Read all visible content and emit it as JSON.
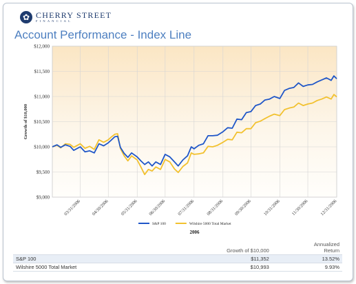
{
  "header": {
    "brand_name": "CHERRY STREET",
    "brand_sub": "FINANCIAL",
    "logo_icon": "flower-icon",
    "page_title": "Account Performance - Index Line"
  },
  "chart_data": {
    "type": "line",
    "title": "",
    "xlabel": "2006",
    "ylabel": "Growth of $10,000",
    "ylim": [
      9000,
      12000
    ],
    "y_ticks": [
      9000,
      9500,
      10000,
      10500,
      11000,
      11500,
      12000
    ],
    "y_tick_labels": [
      "$9,000",
      "$9,500",
      "$10,000",
      "$10,500",
      "$11,000",
      "$11,500",
      "$12,000"
    ],
    "x_tick_labels": [
      "03/31/2006",
      "04/30/2006",
      "05/31/2006",
      "06/30/2006",
      "07/31/2006",
      "08/31/2006",
      "09/30/2006",
      "10/31/2006",
      "11/30/2006",
      "12/31/2006"
    ],
    "x_start": "03/01/2006",
    "x_end": "12/31/2006",
    "grid": true,
    "legend_position": "bottom",
    "background": "gradient cream to amber at top",
    "series": [
      {
        "name": "S&P 100",
        "color": "#1f56c8",
        "points": [
          [
            "03/01/2006",
            10000
          ],
          [
            "03/06/2006",
            10040
          ],
          [
            "03/10/2006",
            9990
          ],
          [
            "03/15/2006",
            10040
          ],
          [
            "03/20/2006",
            10010
          ],
          [
            "03/24/2006",
            9930
          ],
          [
            "03/31/2006",
            10000
          ],
          [
            "04/05/2006",
            9900
          ],
          [
            "04/10/2006",
            9920
          ],
          [
            "04/15/2006",
            9880
          ],
          [
            "04/20/2006",
            10060
          ],
          [
            "04/25/2006",
            10020
          ],
          [
            "04/30/2006",
            10080
          ],
          [
            "05/03/2006",
            10130
          ],
          [
            "05/07/2006",
            10200
          ],
          [
            "05/10/2006",
            10210
          ],
          [
            "05/13/2006",
            9990
          ],
          [
            "05/17/2006",
            9870
          ],
          [
            "05/21/2006",
            9790
          ],
          [
            "05/25/2006",
            9880
          ],
          [
            "05/31/2006",
            9800
          ],
          [
            "06/04/2006",
            9720
          ],
          [
            "06/08/2006",
            9650
          ],
          [
            "06/12/2006",
            9700
          ],
          [
            "06/16/2006",
            9620
          ],
          [
            "06/20/2006",
            9700
          ],
          [
            "06/25/2006",
            9650
          ],
          [
            "06/30/2006",
            9850
          ],
          [
            "07/05/2006",
            9800
          ],
          [
            "07/10/2006",
            9700
          ],
          [
            "07/14/2006",
            9620
          ],
          [
            "07/19/2006",
            9740
          ],
          [
            "07/24/2006",
            9820
          ],
          [
            "07/28/2006",
            10000
          ],
          [
            "07/31/2006",
            9960
          ],
          [
            "08/05/2006",
            10030
          ],
          [
            "08/10/2006",
            10060
          ],
          [
            "08/15/2006",
            10220
          ],
          [
            "08/20/2006",
            10220
          ],
          [
            "08/25/2006",
            10230
          ],
          [
            "08/31/2006",
            10300
          ],
          [
            "09/05/2006",
            10380
          ],
          [
            "09/10/2006",
            10370
          ],
          [
            "09/15/2006",
            10550
          ],
          [
            "09/20/2006",
            10540
          ],
          [
            "09/25/2006",
            10680
          ],
          [
            "09/30/2006",
            10700
          ],
          [
            "10/05/2006",
            10820
          ],
          [
            "10/10/2006",
            10850
          ],
          [
            "10/15/2006",
            10930
          ],
          [
            "10/20/2006",
            10950
          ],
          [
            "10/25/2006",
            11000
          ],
          [
            "10/31/2006",
            10960
          ],
          [
            "11/05/2006",
            11120
          ],
          [
            "11/10/2006",
            11160
          ],
          [
            "11/15/2006",
            11180
          ],
          [
            "11/20/2006",
            11270
          ],
          [
            "11/25/2006",
            11200
          ],
          [
            "11/30/2006",
            11230
          ],
          [
            "12/05/2006",
            11240
          ],
          [
            "12/10/2006",
            11290
          ],
          [
            "12/15/2006",
            11330
          ],
          [
            "12/20/2006",
            11370
          ],
          [
            "12/25/2006",
            11320
          ],
          [
            "12/28/2006",
            11410
          ],
          [
            "12/31/2006",
            11352
          ]
        ]
      },
      {
        "name": "Wilshire 5000 Total Market",
        "color": "#f2c12e",
        "points": [
          [
            "03/01/2006",
            10000
          ],
          [
            "03/06/2006",
            10030
          ],
          [
            "03/10/2006",
            9980
          ],
          [
            "03/15/2006",
            10060
          ],
          [
            "03/20/2006",
            10050
          ],
          [
            "03/24/2006",
            9990
          ],
          [
            "03/31/2006",
            10060
          ],
          [
            "04/05/2006",
            9970
          ],
          [
            "04/10/2006",
            10010
          ],
          [
            "04/15/2006",
            9950
          ],
          [
            "04/20/2006",
            10140
          ],
          [
            "04/25/2006",
            10090
          ],
          [
            "04/30/2006",
            10140
          ],
          [
            "05/03/2006",
            10190
          ],
          [
            "05/07/2006",
            10250
          ],
          [
            "05/10/2006",
            10260
          ],
          [
            "05/13/2006",
            9970
          ],
          [
            "05/17/2006",
            9820
          ],
          [
            "05/21/2006",
            9720
          ],
          [
            "05/25/2006",
            9820
          ],
          [
            "05/31/2006",
            9740
          ],
          [
            "06/04/2006",
            9600
          ],
          [
            "06/08/2006",
            9450
          ],
          [
            "06/12/2006",
            9550
          ],
          [
            "06/16/2006",
            9520
          ],
          [
            "06/20/2006",
            9600
          ],
          [
            "06/25/2006",
            9550
          ],
          [
            "06/30/2006",
            9750
          ],
          [
            "07/05/2006",
            9700
          ],
          [
            "07/10/2006",
            9560
          ],
          [
            "07/14/2006",
            9490
          ],
          [
            "07/19/2006",
            9610
          ],
          [
            "07/24/2006",
            9680
          ],
          [
            "07/28/2006",
            9880
          ],
          [
            "07/31/2006",
            9850
          ],
          [
            "08/05/2006",
            9860
          ],
          [
            "08/10/2006",
            9880
          ],
          [
            "08/15/2006",
            10010
          ],
          [
            "08/20/2006",
            10000
          ],
          [
            "08/25/2006",
            10030
          ],
          [
            "08/31/2006",
            10090
          ],
          [
            "09/05/2006",
            10150
          ],
          [
            "09/10/2006",
            10140
          ],
          [
            "09/15/2006",
            10290
          ],
          [
            "09/20/2006",
            10280
          ],
          [
            "09/25/2006",
            10360
          ],
          [
            "09/30/2006",
            10360
          ],
          [
            "10/05/2006",
            10480
          ],
          [
            "10/10/2006",
            10510
          ],
          [
            "10/15/2006",
            10560
          ],
          [
            "10/20/2006",
            10610
          ],
          [
            "10/25/2006",
            10650
          ],
          [
            "10/31/2006",
            10620
          ],
          [
            "11/05/2006",
            10740
          ],
          [
            "11/10/2006",
            10770
          ],
          [
            "11/15/2006",
            10790
          ],
          [
            "11/20/2006",
            10870
          ],
          [
            "11/25/2006",
            10820
          ],
          [
            "11/30/2006",
            10850
          ],
          [
            "12/05/2006",
            10870
          ],
          [
            "12/10/2006",
            10920
          ],
          [
            "12/15/2006",
            10950
          ],
          [
            "12/20/2006",
            10990
          ],
          [
            "12/25/2006",
            10950
          ],
          [
            "12/28/2006",
            11040
          ],
          [
            "12/31/2006",
            10993
          ]
        ]
      }
    ]
  },
  "summary_table": {
    "columns": [
      "",
      "Growth of $10,000",
      "Annualized Return"
    ],
    "column_return_line1": "Annualized",
    "column_return_line2": "Return",
    "rows": [
      {
        "name": "S&P 100",
        "growth": "$11,352",
        "return": "13.52%"
      },
      {
        "name": "Wilshire 5000 Total Market",
        "growth": "$10,993",
        "return": "9.93%"
      }
    ]
  }
}
